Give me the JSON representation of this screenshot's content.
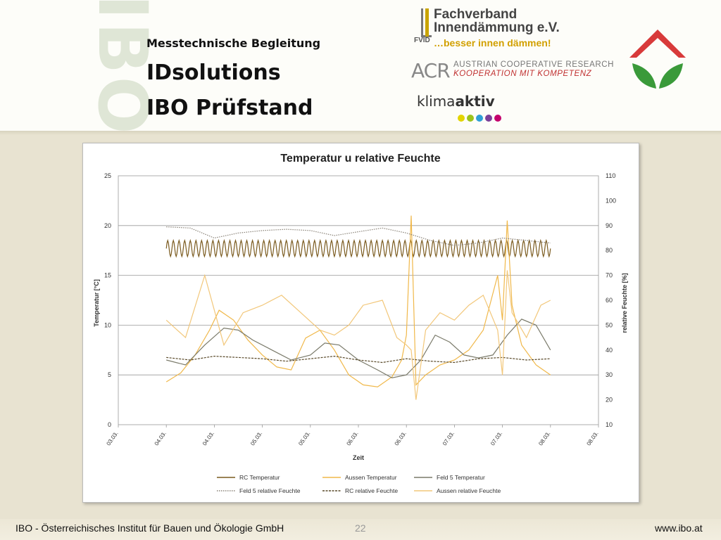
{
  "header": {
    "watermark": "IBO",
    "subtitle": "Messtechnische Begleitung",
    "title_line1": "IDsolutions",
    "title_line2": "IBO Prüfstand"
  },
  "logos": {
    "fvid": {
      "line1": "Fachverband",
      "line2": "Innendämmung e.V.",
      "tagline": "…besser innen dämmen!",
      "mark": "FVID"
    },
    "acr": {
      "letters": "ACR",
      "line1": "AUSTRIAN COOPERATIVE RESEARCH",
      "line2": "KOOPERATION MIT KOMPETENZ"
    },
    "klima": {
      "prefix": "klima",
      "suffix": "aktiv",
      "dot_colors": [
        "#e3d400",
        "#9bc31c",
        "#2f9fd6",
        "#7b3f98",
        "#c4006c"
      ]
    },
    "house_colors": {
      "roof": "#d83a3a",
      "leaves": "#3a9a3a"
    }
  },
  "footer": {
    "left": "IBO - Österreichisches Institut für Bauen und Ökologie GmbH",
    "page": "22",
    "right": "www.ibo.at"
  },
  "chart_data": {
    "type": "line",
    "title": "Temperatur u relative Feuchte",
    "xlabel": "Zeit",
    "ylabel": "Temperatur [°C]",
    "y2label": "relative Feuchte [%]",
    "ylim": [
      0,
      25
    ],
    "y2lim": [
      10,
      110
    ],
    "yticks": [
      0,
      5,
      10,
      15,
      20,
      25
    ],
    "y2ticks": [
      10,
      20,
      30,
      40,
      50,
      60,
      70,
      80,
      90,
      100,
      110
    ],
    "xticks": [
      "03.03.",
      "04.03.",
      "04.03.",
      "05.03.",
      "05.03.",
      "06.03.",
      "06.03.",
      "07.03.",
      "07.03.",
      "08.03.",
      "08.03."
    ],
    "grid": true,
    "legend_position": "bottom",
    "series": [
      {
        "name": "RC Temperatur",
        "axis": "left",
        "color": "#7a5a1e",
        "dash": "solid",
        "x": [
          1.0,
          9.0
        ],
        "oscillation": {
          "center": 17.7,
          "amplitude": 0.8,
          "cycles": 68
        }
      },
      {
        "name": "Aussen Temperatur",
        "axis": "left",
        "color": "#f0b84a",
        "dash": "solid",
        "x": [
          1.0,
          1.3,
          1.6,
          1.9,
          2.1,
          2.4,
          2.7,
          3.0,
          3.3,
          3.6,
          3.9,
          4.2,
          4.5,
          4.8,
          5.1,
          5.4,
          5.7,
          5.9,
          6.0,
          6.1,
          6.2,
          6.4,
          6.7,
          7.0,
          7.3,
          7.6,
          7.9,
          8.0,
          8.1,
          8.2,
          8.4,
          8.7,
          9.0
        ],
        "y": [
          4.3,
          5.2,
          7.0,
          9.5,
          11.5,
          10.5,
          8.5,
          7.0,
          5.8,
          5.5,
          8.7,
          9.5,
          7.5,
          5.0,
          4.0,
          3.8,
          4.8,
          6.5,
          9.0,
          21.0,
          4.0,
          5.0,
          6.0,
          6.5,
          7.5,
          9.5,
          15.0,
          10.5,
          20.5,
          12.0,
          8.0,
          6.0,
          5.0
        ]
      },
      {
        "name": "Feld 5 Temperatur",
        "axis": "left",
        "color": "#7a7a6a",
        "dash": "solid",
        "x": [
          1.0,
          1.4,
          1.8,
          2.2,
          2.5,
          2.8,
          3.2,
          3.6,
          4.0,
          4.3,
          4.6,
          5.0,
          5.4,
          5.7,
          6.0,
          6.3,
          6.6,
          6.9,
          7.2,
          7.5,
          7.8,
          8.1,
          8.4,
          8.7,
          9.0
        ],
        "y": [
          6.5,
          6.0,
          8.0,
          9.7,
          9.5,
          8.5,
          7.5,
          6.5,
          7.0,
          8.2,
          8.0,
          6.5,
          5.5,
          4.7,
          5.0,
          6.5,
          9.0,
          8.3,
          7.0,
          6.7,
          7.0,
          9.0,
          10.6,
          10.0,
          7.5
        ]
      },
      {
        "name": "Feld 5 relative Feuchte",
        "axis": "right",
        "color": "#8a8378",
        "dash": "dotted",
        "x": [
          1.0,
          1.5,
          2.0,
          2.5,
          3.0,
          3.5,
          4.0,
          4.5,
          5.0,
          5.5,
          6.0,
          6.5,
          7.0,
          7.5,
          8.0,
          8.5,
          9.0
        ],
        "y": [
          89.5,
          89.0,
          85.0,
          87.0,
          88.0,
          88.5,
          88.0,
          86.0,
          87.5,
          89.0,
          87.0,
          84.0,
          82.0,
          83.0,
          85.0,
          84.0,
          83.0
        ]
      },
      {
        "name": "RC relative Feuchte",
        "axis": "right",
        "color": "#5a4a2a",
        "dash": "dashed",
        "x": [
          1.0,
          1.5,
          2.0,
          2.5,
          3.0,
          3.5,
          4.0,
          4.5,
          5.0,
          5.5,
          6.0,
          6.5,
          7.0,
          7.5,
          8.0,
          8.5,
          9.0
        ],
        "y": [
          37.0,
          36.0,
          37.5,
          37.0,
          36.5,
          35.5,
          36.5,
          37.5,
          36.0,
          35.0,
          36.5,
          35.5,
          35.0,
          36.5,
          37.0,
          36.0,
          36.5
        ]
      },
      {
        "name": "Aussen relative Feuchte",
        "axis": "right",
        "color": "#f2c77a",
        "dash": "solid",
        "x": [
          1.0,
          1.4,
          1.8,
          2.2,
          2.6,
          3.0,
          3.4,
          3.8,
          4.2,
          4.5,
          4.8,
          5.1,
          5.5,
          5.8,
          6.0,
          6.1,
          6.2,
          6.4,
          6.7,
          7.0,
          7.3,
          7.6,
          7.9,
          8.0,
          8.1,
          8.2,
          8.5,
          8.8,
          9.0
        ],
        "y": [
          52.0,
          45.0,
          70.0,
          42.0,
          55.0,
          58.0,
          62.0,
          55.0,
          48.0,
          46.0,
          50.0,
          58.0,
          60.0,
          45.0,
          42.0,
          40.0,
          20.0,
          48.0,
          55.0,
          52.0,
          58.0,
          62.0,
          48.0,
          30.0,
          72.0,
          55.0,
          45.0,
          58.0,
          60.0
        ]
      }
    ]
  }
}
